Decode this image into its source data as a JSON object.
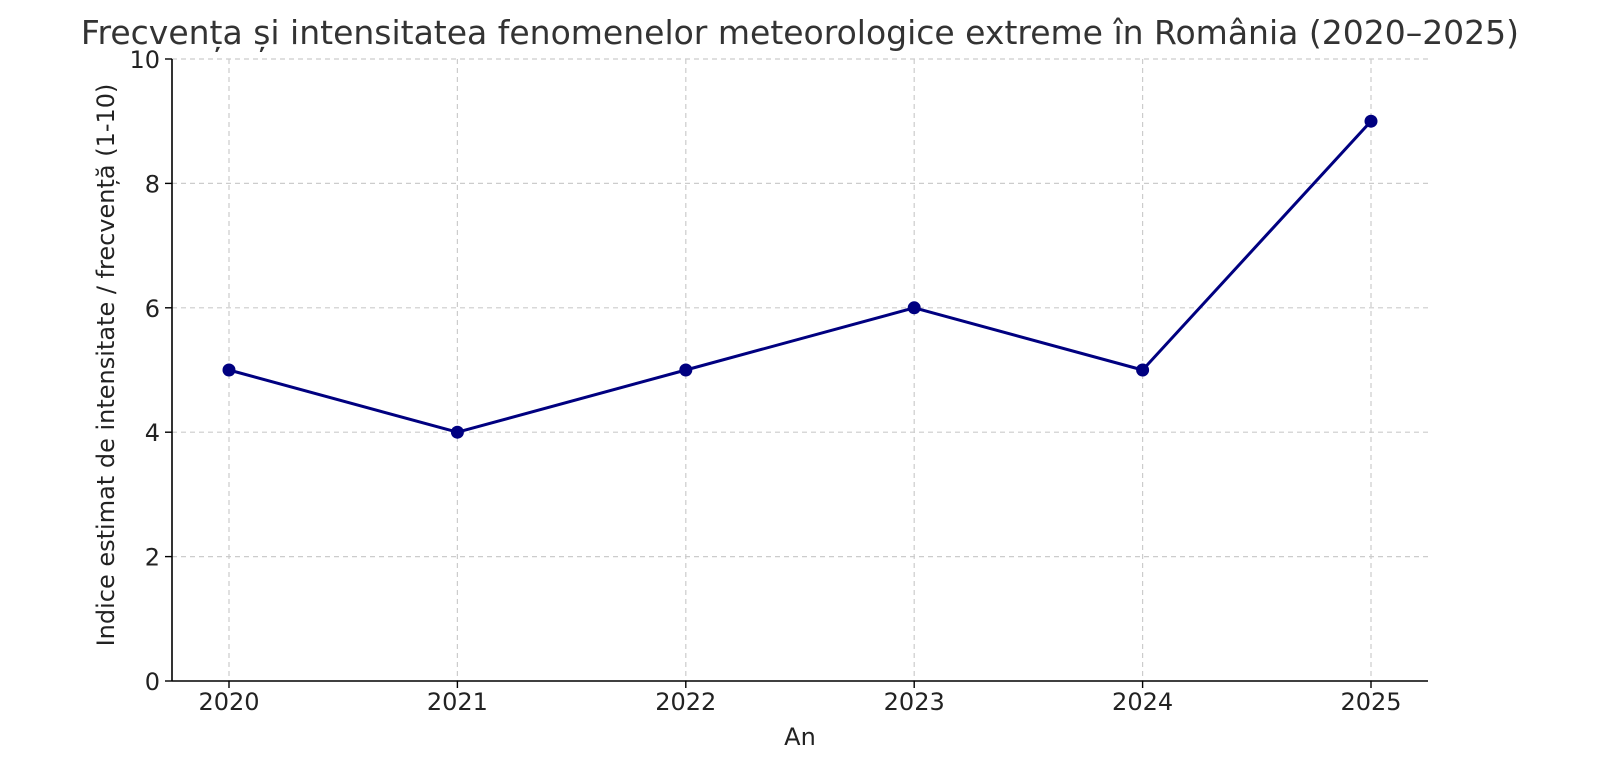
{
  "chart_data": {
    "type": "line",
    "title": "Frecvența și intensitatea fenomenelor meteorologice extreme în România (2020–2025)",
    "xlabel": "An",
    "ylabel": "Indice estimat de intensitate / frecvență (1-10)",
    "x": [
      "2020",
      "2021",
      "2022",
      "2023",
      "2024",
      "2025"
    ],
    "series": [
      {
        "values": [
          5,
          4,
          5,
          6,
          5,
          9
        ],
        "color": "#000080",
        "marker": "circle"
      }
    ],
    "ylim": [
      0,
      10
    ],
    "yticks": [
      0,
      2,
      4,
      6,
      8,
      10
    ],
    "grid": true,
    "axes_color": "#000000",
    "grid_color": "#cccccc"
  }
}
